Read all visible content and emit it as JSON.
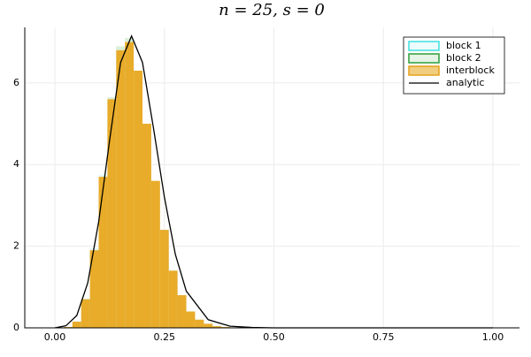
{
  "chart_data": {
    "type": "histogram",
    "title": "n = 25, s = 0",
    "bins": [
      0,
      0.02,
      0.04,
      0.06,
      0.08,
      0.1,
      0.12,
      0.14,
      0.16,
      0.18,
      0.2,
      0.22,
      0.24,
      0.26,
      0.28,
      0.3,
      0.32,
      0.34,
      0.36,
      0.38,
      0.4,
      0.42,
      0.44,
      0.46,
      0.48,
      0.5
    ],
    "series": [
      {
        "name": "block 1",
        "color": "#3ee0e0",
        "fill": "#dff8f8",
        "values": [
          0,
          0.02,
          0.16,
          0.72,
          1.95,
          3.75,
          5.6,
          6.85,
          7.05,
          6.3,
          5.0,
          3.6,
          2.4,
          1.4,
          0.8,
          0.4,
          0.2,
          0.1,
          0.04,
          0.02,
          0.01,
          0,
          0,
          0,
          0
        ]
      },
      {
        "name": "block 2",
        "color": "#2e9e3a",
        "fill": "#d4ecd2",
        "values": [
          0,
          0.02,
          0.15,
          0.7,
          1.9,
          3.7,
          5.65,
          6.9,
          7.1,
          6.3,
          4.95,
          3.55,
          2.4,
          1.4,
          0.8,
          0.4,
          0.2,
          0.1,
          0.04,
          0.02,
          0.01,
          0,
          0,
          0,
          0
        ]
      },
      {
        "name": "interblock",
        "color": "#e6a11a",
        "fill": "#e8ac2a",
        "values": [
          0,
          0.02,
          0.15,
          0.7,
          1.9,
          3.7,
          5.6,
          6.8,
          7.0,
          6.3,
          5.0,
          3.6,
          2.4,
          1.4,
          0.8,
          0.4,
          0.2,
          0.1,
          0.04,
          0.02,
          0.01,
          0,
          0,
          0,
          0
        ]
      }
    ],
    "line": {
      "name": "analytic",
      "color": "#000000",
      "x": [
        0,
        0.025,
        0.05,
        0.075,
        0.1,
        0.125,
        0.15,
        0.175,
        0.2,
        0.225,
        0.25,
        0.275,
        0.3,
        0.35,
        0.4,
        0.45,
        0.5,
        1.0
      ],
      "y": [
        0,
        0.05,
        0.3,
        1.1,
        2.6,
        4.6,
        6.5,
        7.15,
        6.5,
        4.9,
        3.2,
        1.8,
        0.9,
        0.2,
        0.04,
        0.01,
        0,
        0
      ]
    },
    "xlim": [
      -0.0687,
      1.0606
    ],
    "ylim": [
      0,
      7.36
    ],
    "xticks": [
      {
        "value": 0,
        "label": "0.00"
      },
      {
        "value": 0.25,
        "label": "0.25"
      },
      {
        "value": 0.5,
        "label": "0.50"
      },
      {
        "value": 0.75,
        "label": "0.75"
      },
      {
        "value": 1,
        "label": "1.00"
      }
    ],
    "yticks": [
      0,
      2,
      4,
      6
    ],
    "grid": true,
    "legend": "top-right"
  }
}
